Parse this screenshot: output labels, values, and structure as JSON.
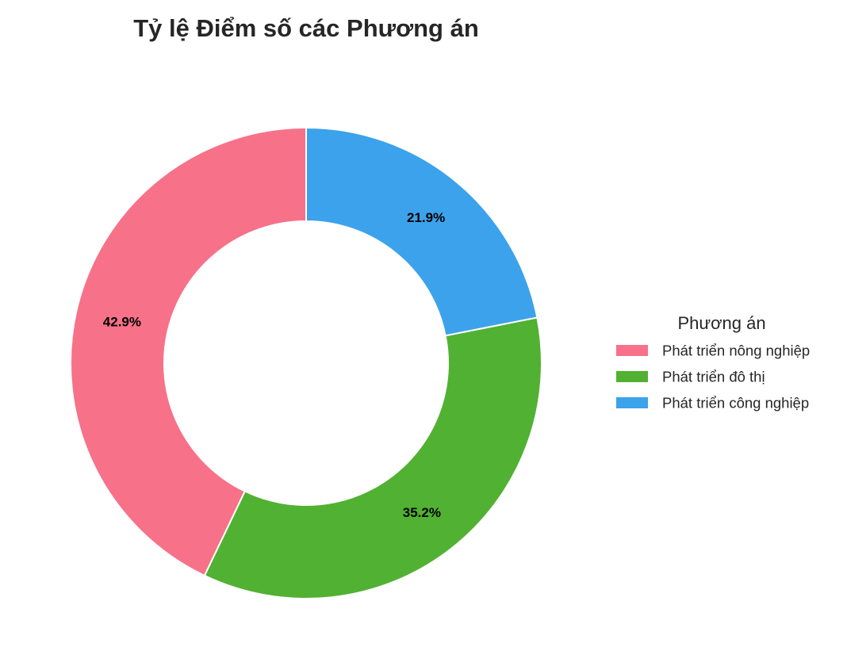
{
  "chart_data": {
    "type": "pie",
    "style": "donut",
    "title": "Tỷ lệ Điểm số các Phương án",
    "legend": {
      "title": "Phương án",
      "placement": "right"
    },
    "slices": [
      {
        "label": "Phát triển công nghiệp",
        "percent": 21.9,
        "percent_label": "21.9%",
        "color": "#3ca2eb"
      },
      {
        "label": "Phát triển đô thị",
        "percent": 35.2,
        "percent_label": "35.2%",
        "color": "#51b132"
      },
      {
        "label": "Phát triển nông nghiệp",
        "percent": 42.9,
        "percent_label": "42.9%",
        "color": "#f77189"
      }
    ],
    "legend_order": [
      "Phát triển nông nghiệp",
      "Phát triển đô thị",
      "Phát triển công nghiệp"
    ],
    "start": "top",
    "direction": "clockwise"
  }
}
